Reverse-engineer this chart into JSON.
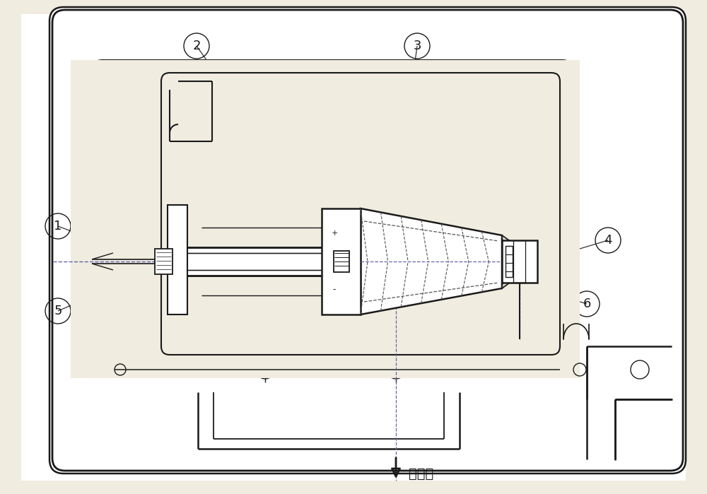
{
  "bg_color": "#f0ece0",
  "line_color": "#1a1a1a",
  "spray_label": "噴射点",
  "fig_w": 10.0,
  "fig_h": 6.99
}
